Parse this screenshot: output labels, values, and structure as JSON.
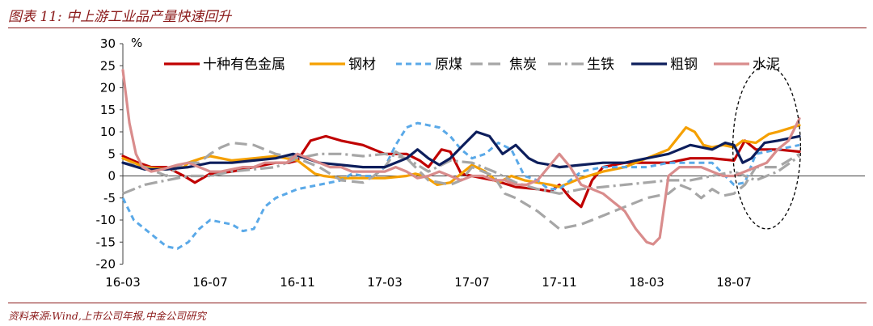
{
  "header": {
    "title": "图表 11:  中上游工业品产量快速回升"
  },
  "footer": {
    "source": "资料来源:Wind,上市公司年报,中金公司研究"
  },
  "chart_data": {
    "type": "line",
    "ylabel": "%",
    "ylim": [
      -20,
      30
    ],
    "yticks": [
      -20,
      -15,
      -10,
      -5,
      0,
      5,
      10,
      15,
      20,
      25,
      30
    ],
    "xlim": [
      0,
      34
    ],
    "xticks": [
      {
        "x": 0,
        "label": "16-03"
      },
      {
        "x": 4,
        "label": "16-07"
      },
      {
        "x": 8,
        "label": "16-11"
      },
      {
        "x": 12,
        "label": "17-03"
      },
      {
        "x": 16,
        "label": "17-07"
      },
      {
        "x": 20,
        "label": "17-11"
      },
      {
        "x": 24,
        "label": "18-03"
      },
      {
        "x": 28,
        "label": "18-07"
      }
    ],
    "legend_position": "top",
    "series": [
      {
        "name": "十种有色金属",
        "color": "#c00000",
        "dash": "",
        "width": 3.2,
        "x": [
          0,
          0.7,
          1.3,
          2,
          2.8,
          3.3,
          4,
          5,
          6,
          7,
          7.6,
          8,
          8.6,
          9.3,
          10,
          11,
          12,
          13,
          13.6,
          14,
          14.6,
          15,
          15.5,
          16,
          17,
          18,
          19,
          19.6,
          20,
          20.5,
          21,
          21.5,
          22,
          23,
          24,
          25,
          26,
          27,
          28,
          28.5,
          29,
          30,
          31
        ],
        "y": [
          4.5,
          3,
          2,
          2,
          0,
          -1.5,
          0.5,
          1,
          2,
          3,
          3,
          3.5,
          8,
          9,
          8,
          7,
          5,
          5,
          3.5,
          2,
          6,
          5.5,
          0.5,
          0,
          -1,
          -2.5,
          -3,
          -3.5,
          -2,
          -5,
          -7,
          -1,
          2,
          3,
          3,
          3,
          4,
          4,
          3.5,
          8,
          6,
          6,
          5.5
        ]
      },
      {
        "name": "钢材",
        "color": "#f5a000",
        "dash": "",
        "width": 3.2,
        "x": [
          0,
          1,
          2,
          2.8,
          3,
          3.6,
          4,
          5,
          6,
          7,
          8,
          8.8,
          9.2,
          10,
          11,
          12,
          13,
          13.4,
          13.8,
          14.4,
          15,
          16,
          16.6,
          17.2,
          17.8,
          18.4,
          19,
          19.6,
          20,
          21,
          22,
          23,
          24,
          25,
          25.4,
          25.8,
          26.2,
          26.6,
          27,
          27.5,
          28,
          28.4,
          29,
          29.6,
          30,
          31
        ],
        "y": [
          4,
          2,
          1.5,
          2,
          3,
          4,
          4.5,
          3.5,
          4,
          4.5,
          3.5,
          0.5,
          0,
          -0.5,
          -0.5,
          -0.5,
          0,
          0.5,
          0,
          -2,
          -1.5,
          2.5,
          1,
          -1.5,
          0,
          -1,
          -1.5,
          -2,
          -2.5,
          -0.5,
          1,
          2,
          4,
          6,
          8.5,
          11,
          10,
          7,
          6.5,
          7,
          6.5,
          8,
          7.5,
          9.5,
          10,
          11.5
        ]
      },
      {
        "name": "原煤",
        "color": "#5aa9e8",
        "dash": "7,5",
        "width": 3,
        "x": [
          0,
          0.5,
          1,
          1.5,
          2,
          2.5,
          3,
          3.5,
          4,
          5,
          5.5,
          6,
          6.5,
          7,
          7.5,
          8,
          9,
          10,
          10.5,
          11,
          11.5,
          12,
          12.5,
          13,
          13.5,
          14,
          14.5,
          15,
          15.5,
          16,
          16.6,
          17.2,
          17.8,
          18.4,
          19,
          19.5,
          20,
          20.5,
          21,
          22,
          23,
          24,
          25,
          26,
          27,
          28,
          28.5,
          29,
          30,
          31
        ],
        "y": [
          -5,
          -10,
          -12,
          -14,
          -16,
          -16.5,
          -15,
          -12,
          -10,
          -11,
          -12.5,
          -12,
          -7,
          -5,
          -4,
          -3,
          -2,
          -1,
          0.5,
          0,
          0,
          2,
          7,
          11,
          12,
          11.5,
          11,
          9,
          6,
          4,
          5,
          7.5,
          6,
          0,
          -1,
          -3,
          -3,
          -1,
          1,
          2,
          2,
          2,
          3,
          3,
          3,
          -2,
          -1.5,
          5,
          6,
          7
        ]
      },
      {
        "name": "焦炭",
        "color": "#a6a6a6",
        "dash": "15,7",
        "width": 3.2,
        "x": [
          0,
          1,
          2,
          2.8,
          3.5,
          4,
          4.5,
          5,
          6,
          7,
          8,
          9,
          10,
          11,
          11.5,
          12,
          12.5,
          13,
          14,
          15,
          15.5,
          16,
          17,
          17.5,
          18,
          18.5,
          19,
          20,
          21,
          22,
          23,
          24,
          25,
          25.5,
          26,
          26.5,
          27,
          27.5,
          28,
          28.5,
          29,
          30,
          31
        ],
        "y": [
          3,
          2,
          0,
          3,
          3,
          5,
          6.5,
          7.5,
          7,
          5,
          4,
          2,
          -1,
          -1.5,
          0,
          2,
          5.5,
          4,
          -1,
          -2,
          -1,
          2,
          0,
          -4,
          -5,
          -6.5,
          -8,
          -12,
          -11,
          -9,
          -7,
          -5,
          -4,
          -2,
          -3,
          -5,
          -3,
          -4.5,
          -4,
          -2,
          2,
          2,
          5
        ]
      },
      {
        "name": "生铁",
        "color": "#a6a6a6",
        "dash": "16,5,3,5",
        "width": 3.2,
        "x": [
          0,
          1,
          2,
          3,
          4,
          5,
          6,
          7,
          8,
          9,
          10,
          11,
          12,
          13,
          14,
          15,
          16,
          17,
          18,
          19,
          20,
          21,
          22,
          23,
          24,
          25,
          26,
          27,
          28,
          29,
          30,
          31
        ],
        "y": [
          -4,
          -2,
          -1,
          0,
          0,
          1,
          1.5,
          2,
          4,
          5,
          5,
          4.5,
          5,
          4,
          1,
          3.5,
          3,
          1,
          -1.5,
          -3,
          -4,
          -3,
          -2.5,
          -2,
          -1.5,
          -1,
          -1,
          0,
          1,
          -1,
          1,
          4.5
        ]
      },
      {
        "name": "粗钢",
        "color": "#0d1e5c",
        "dash": "",
        "width": 3.2,
        "x": [
          0,
          1,
          2,
          3,
          4,
          5,
          6,
          7,
          7.8,
          8.4,
          9,
          10,
          11,
          12,
          13,
          13.5,
          14,
          14.5,
          15,
          15.6,
          16.2,
          16.8,
          17.4,
          18,
          18.6,
          19,
          19.6,
          20,
          21,
          22,
          23,
          24,
          25,
          26,
          27,
          27.6,
          28,
          28.4,
          28.8,
          29.4,
          30,
          31
        ],
        "y": [
          3,
          1.5,
          1.5,
          2,
          3,
          3,
          3.5,
          4,
          5,
          4,
          3,
          2.5,
          2,
          2,
          4,
          6,
          4,
          2.5,
          4,
          7,
          10,
          9,
          5,
          7,
          4,
          3,
          2.5,
          2,
          2.5,
          3,
          3,
          4,
          5,
          7,
          6,
          7.5,
          7,
          3,
          4,
          7.5,
          8,
          9
        ]
      },
      {
        "name": "水泥",
        "color": "#d98c8c",
        "dash": "",
        "width": 3.2,
        "x": [
          0,
          0.3,
          0.6,
          0.9,
          1.3,
          1.8,
          2.5,
          3,
          3.5,
          4,
          4.5,
          5,
          5.5,
          6,
          6.5,
          7,
          7.5,
          8,
          8.5,
          9,
          9.5,
          10,
          10.5,
          11,
          11.5,
          12,
          12.5,
          13,
          13.5,
          14,
          14.5,
          15,
          15.5,
          16,
          16.5,
          17,
          17.5,
          18,
          18.5,
          19,
          19.5,
          20,
          20.5,
          21,
          21.5,
          22,
          22.5,
          23,
          23.5,
          24,
          24.3,
          24.6,
          25,
          25.5,
          26,
          26.5,
          27,
          27.5,
          28,
          28.5,
          29,
          29.5,
          30,
          30.5,
          31
        ],
        "y": [
          24,
          12,
          5,
          2,
          1,
          1.5,
          2.5,
          3,
          2,
          1,
          1,
          1.5,
          2,
          2,
          3,
          3,
          3,
          5,
          4,
          3,
          2,
          2,
          1,
          1,
          1,
          1,
          2,
          1,
          -0.5,
          0,
          1,
          0,
          -1,
          0,
          0,
          -1,
          -1,
          -2,
          -2,
          -1,
          2,
          5,
          2,
          -2,
          -3,
          -4,
          -6,
          -8,
          -12,
          -15,
          -15.5,
          -14,
          0,
          2,
          2,
          2,
          1,
          0,
          0,
          1,
          2,
          3,
          6,
          8,
          13
        ]
      }
    ],
    "highlight_ellipse": {
      "x_center": 29.5,
      "y_center": 6.5,
      "x_radius": 1.55,
      "y_radius": 18.5
    }
  }
}
